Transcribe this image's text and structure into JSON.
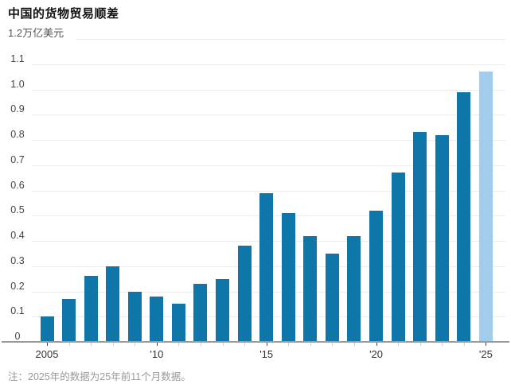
{
  "title": "中国的货物贸易顺差",
  "note": "注：2025年的数据为25年前11个月数据。",
  "chart_data": {
    "type": "bar",
    "title": "中国的货物贸易顺差",
    "unit_label": "1.2万亿美元",
    "categories": [
      2005,
      2006,
      2007,
      2008,
      2009,
      2010,
      2011,
      2012,
      2013,
      2014,
      2015,
      2016,
      2017,
      2018,
      2019,
      2020,
      2021,
      2022,
      2023,
      2024,
      2025
    ],
    "values": [
      0.1,
      0.17,
      0.26,
      0.3,
      0.2,
      0.18,
      0.15,
      0.23,
      0.25,
      0.38,
      0.59,
      0.51,
      0.42,
      0.35,
      0.42,
      0.52,
      0.67,
      0.83,
      0.82,
      0.99,
      1.07
    ],
    "highlight_index": 20,
    "ylim": [
      0,
      1.2
    ],
    "ytick_step": 0.1,
    "ytick_labels": [
      "1.1",
      "1.0",
      "0.9",
      "0.8",
      "0.7",
      "0.6",
      "0.5",
      "0.4",
      "0.3",
      "0.2",
      "0.1",
      "0"
    ],
    "xticks": [
      {
        "index": 0,
        "label": "2005"
      },
      {
        "index": 5,
        "label": "'10"
      },
      {
        "index": 10,
        "label": "'15"
      },
      {
        "index": 15,
        "label": "'20"
      },
      {
        "index": 20,
        "label": "'25"
      }
    ],
    "grid": true,
    "legend": "none",
    "bar_color": "#0e76a8",
    "highlight_color": "#a3cbea",
    "gridline_color": "#ececec",
    "axis_color": "#9a9a9a"
  }
}
